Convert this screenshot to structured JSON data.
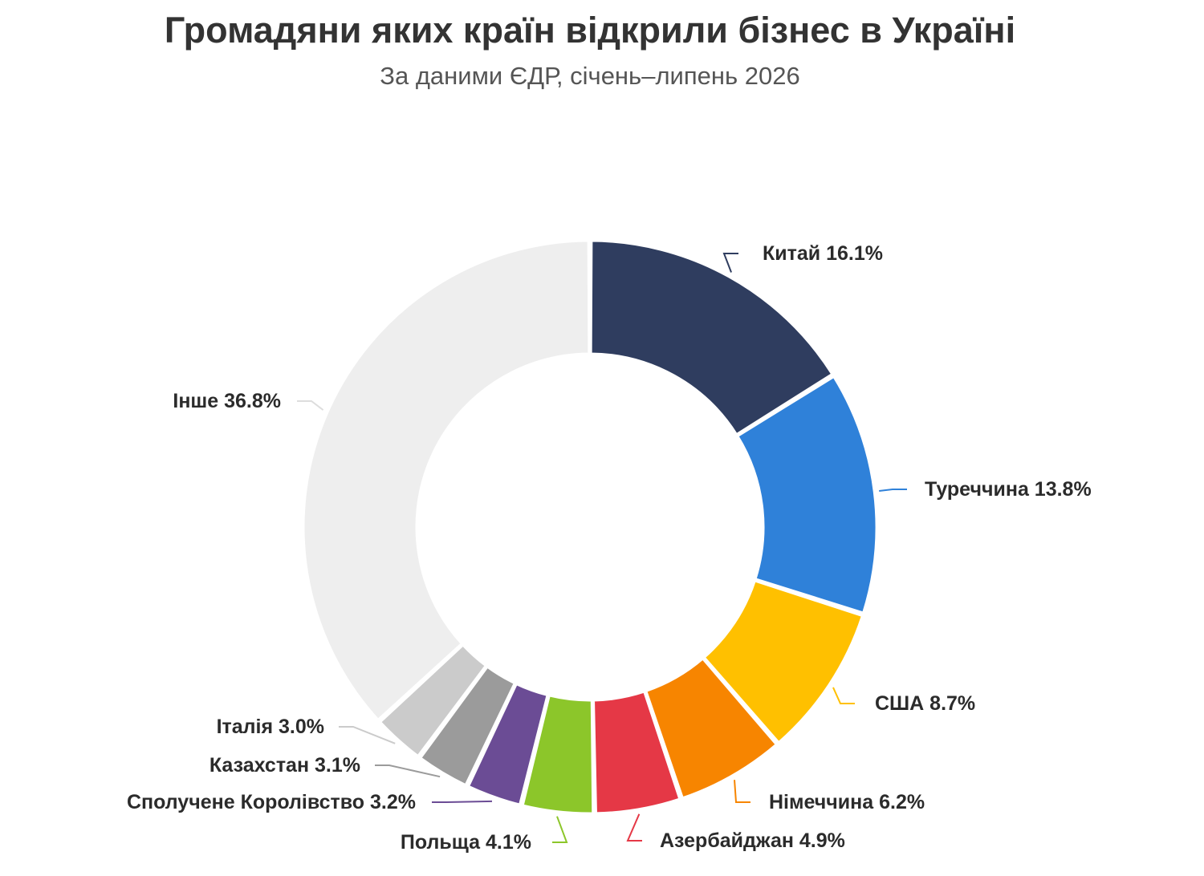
{
  "title": "Громадяни яких країн відкрили бізнес в Україні",
  "subtitle": "За даними ЄДР, січень–липень 2026",
  "chart_data": {
    "type": "pie",
    "variant": "donut",
    "title": "Громадяни яких країн відкрили бізнес в Україні",
    "subtitle": "За даними ЄДР, січень–липень 2026",
    "unit": "%",
    "slices": [
      {
        "label": "Китай",
        "value": 16.1,
        "text": "Китай 16.1%",
        "color": "#2f3d5f"
      },
      {
        "label": "Туреччина",
        "value": 13.8,
        "text": "Туреччина 13.8%",
        "color": "#2f81d9"
      },
      {
        "label": "США",
        "value": 8.7,
        "text": "США 8.7%",
        "color": "#ffc000"
      },
      {
        "label": "Німеччина",
        "value": 6.2,
        "text": "Німеччина 6.2%",
        "color": "#f78500"
      },
      {
        "label": "Азербайджан",
        "value": 4.9,
        "text": "Азербайджан 4.9%",
        "color": "#e53846"
      },
      {
        "label": "Польща",
        "value": 4.1,
        "text": "Польща 4.1%",
        "color": "#8cc62a"
      },
      {
        "label": "Сполучене Королівство",
        "value": 3.2,
        "text": "Сполучене Королівство 3.2%",
        "color": "#6b4c95"
      },
      {
        "label": "Казахстан",
        "value": 3.1,
        "text": "Казахстан 3.1%",
        "color": "#9b9b9b"
      },
      {
        "label": "Італія",
        "value": 3.0,
        "text": "Італія 3.0%",
        "color": "#cbcbcb"
      },
      {
        "label": "Інше",
        "value": 36.8,
        "text": "Інше 36.8%",
        "color": "#eeeeee"
      }
    ]
  }
}
